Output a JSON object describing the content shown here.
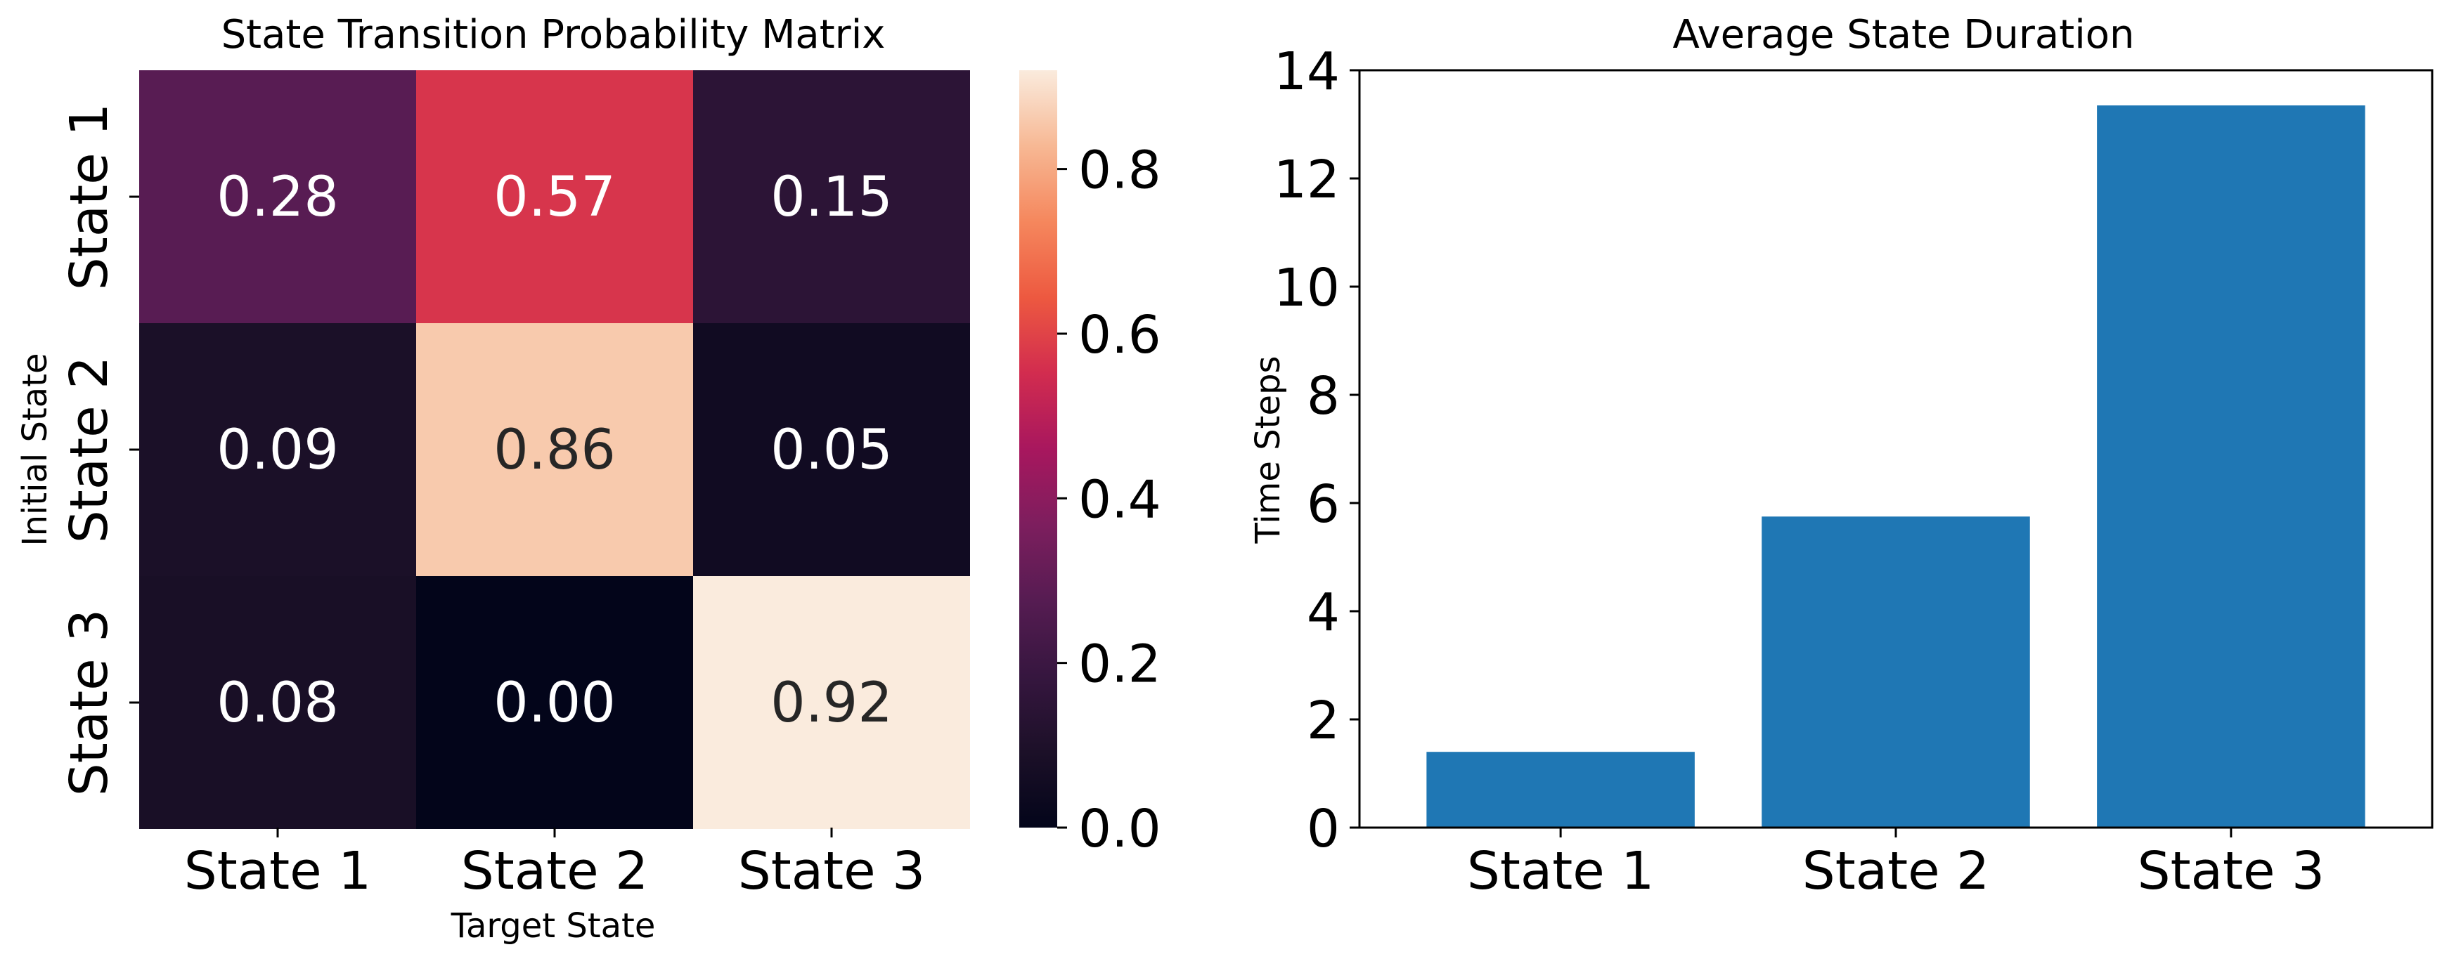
{
  "chart_data": [
    {
      "type": "heatmap",
      "title": "State Transition Probability Matrix",
      "xlabel": "Target State",
      "ylabel": "Initial State",
      "x_categories": [
        "State 1",
        "State 2",
        "State 3"
      ],
      "y_categories": [
        "State 1",
        "State 2",
        "State 3"
      ],
      "values": [
        [
          0.28,
          0.57,
          0.15
        ],
        [
          0.09,
          0.86,
          0.05
        ],
        [
          0.08,
          0.0,
          0.92
        ]
      ],
      "cell_labels": [
        [
          "0.28",
          "0.57",
          "0.15"
        ],
        [
          "0.09",
          "0.86",
          "0.05"
        ],
        [
          "0.08",
          "0.00",
          "0.92"
        ]
      ],
      "colormap": "rocket",
      "colorbar": {
        "range": [
          0,
          0.92
        ],
        "ticks": [
          0.0,
          0.2,
          0.4,
          0.6,
          0.8
        ],
        "tick_labels": [
          "0.0",
          "0.2",
          "0.4",
          "0.6",
          "0.8"
        ]
      }
    },
    {
      "type": "bar",
      "title": "Average State Duration",
      "xlabel": "",
      "ylabel": "Time Steps",
      "categories": [
        "State 1",
        "State 2",
        "State 3"
      ],
      "values": [
        1.4,
        5.75,
        13.35
      ],
      "ylim": [
        0,
        14
      ],
      "yticks": [
        0,
        2,
        4,
        6,
        8,
        10,
        12,
        14
      ],
      "ytick_labels": [
        "0",
        "2",
        "4",
        "6",
        "8",
        "10",
        "12",
        "14"
      ],
      "bar_color": "#1f77b4",
      "grid": false
    }
  ]
}
